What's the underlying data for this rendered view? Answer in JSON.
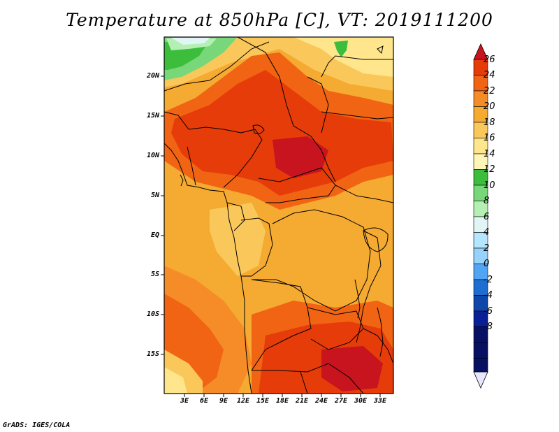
{
  "title": "Temperature at 850hPa [C], VT: 2019111200",
  "footer": "GrADS: IGES/COLA",
  "lat_labels": [
    "20N",
    "15N",
    "10N",
    "5N",
    "EQ",
    "5S",
    "10S",
    "15S"
  ],
  "lon_labels": [
    "3E",
    "6E",
    "9E",
    "12E",
    "15E",
    "18E",
    "21E",
    "24E",
    "27E",
    "30E",
    "33E"
  ],
  "colorbar": {
    "labels": [
      "26",
      "24",
      "22",
      "20",
      "18",
      "16",
      "14",
      "12",
      "10",
      "8",
      "6",
      "4",
      "2",
      "0",
      "-2",
      "-4",
      "-6",
      "-8"
    ],
    "colors": [
      "#c8141e",
      "#e63c0a",
      "#f06414",
      "#f58c28",
      "#f5aa32",
      "#fac85a",
      "#ffe68c",
      "#fff5b4",
      "#3cbe3c",
      "#78d778",
      "#b4f0b4",
      "#e1f5f5",
      "#b4e6ff",
      "#96d2fa",
      "#50a5f5",
      "#1e6ed2",
      "#0f46aa",
      "#0a1e96",
      "#081064",
      "#e6e6ff"
    ]
  },
  "map_colors": {
    "t26": "#c8141e",
    "t24": "#e63c0a",
    "t22": "#f06414",
    "t20": "#f58c28",
    "t18": "#f5aa32",
    "t16": "#fac85a",
    "t14": "#ffe68c",
    "t12": "#3cbe3c",
    "t10": "#78d778",
    "t8": "#b4f0b4",
    "t6": "#e1f5f5"
  }
}
